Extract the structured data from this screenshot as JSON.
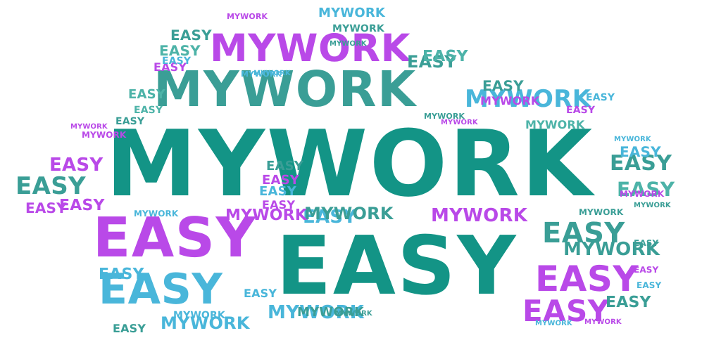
{
  "palette": {
    "teal": "#139486",
    "purple": "#B949E8",
    "sky": "#49B6DA",
    "sea": "#3A9E96",
    "mint": "#4DB3A8"
  },
  "words": [
    {
      "text": "MYWORK",
      "color": "teal",
      "size": 130
    },
    {
      "text": "EASY",
      "color": "teal",
      "size": 115
    },
    {
      "text": "MYWORK",
      "color": "sea",
      "size": 70
    },
    {
      "text": "EASY",
      "color": "purple",
      "size": 78
    },
    {
      "text": "EASY",
      "color": "sky",
      "size": 60
    },
    {
      "text": "MYWORK",
      "color": "purple",
      "size": 54
    },
    {
      "text": "EASY",
      "color": "purple",
      "size": 50
    },
    {
      "text": "EASY",
      "color": "sea",
      "size": 40
    },
    {
      "text": "EASY",
      "color": "purple",
      "size": 42
    },
    {
      "text": "MYWORK",
      "color": "sky",
      "size": 34
    },
    {
      "text": "MYWORK",
      "color": "purple",
      "size": 26
    },
    {
      "text": "MYWORK",
      "color": "sea",
      "size": 26
    },
    {
      "text": "EASY",
      "color": "sea",
      "size": 30
    },
    {
      "text": "EASY",
      "color": "mint",
      "size": 28
    },
    {
      "text": "EASY",
      "color": "sky",
      "size": 26
    },
    {
      "text": "EASY",
      "color": "sea",
      "size": 34
    },
    {
      "text": "EASY",
      "color": "purple",
      "size": 26
    },
    {
      "text": "MYWORK",
      "color": "sky",
      "size": 26
    },
    {
      "text": "MYWORK",
      "color": "sky",
      "size": 24
    },
    {
      "text": "MYWORK",
      "color": "sea",
      "size": 24
    },
    {
      "text": "MYWORK",
      "color": "purple",
      "size": 22
    },
    {
      "text": "EASY",
      "color": "sky",
      "size": 22
    },
    {
      "text": "EASY",
      "color": "sea",
      "size": 24
    },
    {
      "text": "EASY",
      "color": "mint",
      "size": 22
    },
    {
      "text": "EASY",
      "color": "sea",
      "size": 20
    },
    {
      "text": "EASY",
      "color": "purple",
      "size": 22
    },
    {
      "text": "EASY",
      "color": "sky",
      "size": 22
    },
    {
      "text": "EASY",
      "color": "sea",
      "size": 22
    },
    {
      "text": "EASY",
      "color": "purple",
      "size": 20
    },
    {
      "text": "EASY",
      "color": "mint",
      "size": 20
    },
    {
      "text": "EASY",
      "color": "sky",
      "size": 20
    },
    {
      "text": "EASY",
      "color": "sea",
      "size": 20
    },
    {
      "text": "EASY",
      "color": "purple",
      "size": 18
    },
    {
      "text": "EASY",
      "color": "sky",
      "size": 18
    },
    {
      "text": "EASY",
      "color": "sea",
      "size": 18
    },
    {
      "text": "EASY",
      "color": "mint",
      "size": 18
    },
    {
      "text": "EASY",
      "color": "purple",
      "size": 16
    },
    {
      "text": "EASY",
      "color": "sky",
      "size": 16
    },
    {
      "text": "EASY",
      "color": "sea",
      "size": 16
    },
    {
      "text": "EASY",
      "color": "purple",
      "size": 16
    },
    {
      "text": "EASY",
      "color": "sky",
      "size": 14
    },
    {
      "text": "EASY",
      "color": "sea",
      "size": 14
    },
    {
      "text": "EASY",
      "color": "mint",
      "size": 14
    },
    {
      "text": "EASY",
      "color": "purple",
      "size": 14
    },
    {
      "text": "EASY",
      "color": "sky",
      "size": 14
    },
    {
      "text": "EASY",
      "color": "sea",
      "size": 12
    },
    {
      "text": "EASY",
      "color": "purple",
      "size": 12
    },
    {
      "text": "EASY",
      "color": "sky",
      "size": 12
    },
    {
      "text": "MYWORK",
      "color": "sea",
      "size": 18
    },
    {
      "text": "MYWORK",
      "color": "sky",
      "size": 18
    },
    {
      "text": "MYWORK",
      "color": "purple",
      "size": 16
    },
    {
      "text": "MYWORK",
      "color": "mint",
      "size": 16
    },
    {
      "text": "MYWORK",
      "color": "sea",
      "size": 14
    },
    {
      "text": "MYWORK",
      "color": "sky",
      "size": 14
    },
    {
      "text": "MYWORK",
      "color": "purple",
      "size": 12
    },
    {
      "text": "MYWORK",
      "color": "sea",
      "size": 12
    },
    {
      "text": "MYWORK",
      "color": "sky",
      "size": 12
    },
    {
      "text": "MYWORK",
      "color": "purple",
      "size": 12
    },
    {
      "text": "MYWORK",
      "color": "sea",
      "size": 11
    },
    {
      "text": "MYWORK",
      "color": "sky",
      "size": 11
    },
    {
      "text": "MYWORK",
      "color": "purple",
      "size": 11
    },
    {
      "text": "MYWORK",
      "color": "sea",
      "size": 10
    },
    {
      "text": "MYWORK",
      "color": "sky",
      "size": 10
    },
    {
      "text": "MYWORK",
      "color": "purple",
      "size": 10
    },
    {
      "text": "MYWORK",
      "color": "sea",
      "size": 10
    },
    {
      "text": "MYWORK",
      "color": "sky",
      "size": 10
    },
    {
      "text": "MYWORK",
      "color": "purple",
      "size": 10
    },
    {
      "text": "MYWORK",
      "color": "sea",
      "size": 10
    },
    {
      "text": "MYWORK",
      "color": "sky",
      "size": 10
    },
    {
      "text": "MYWORK",
      "color": "purple",
      "size": 10
    }
  ]
}
